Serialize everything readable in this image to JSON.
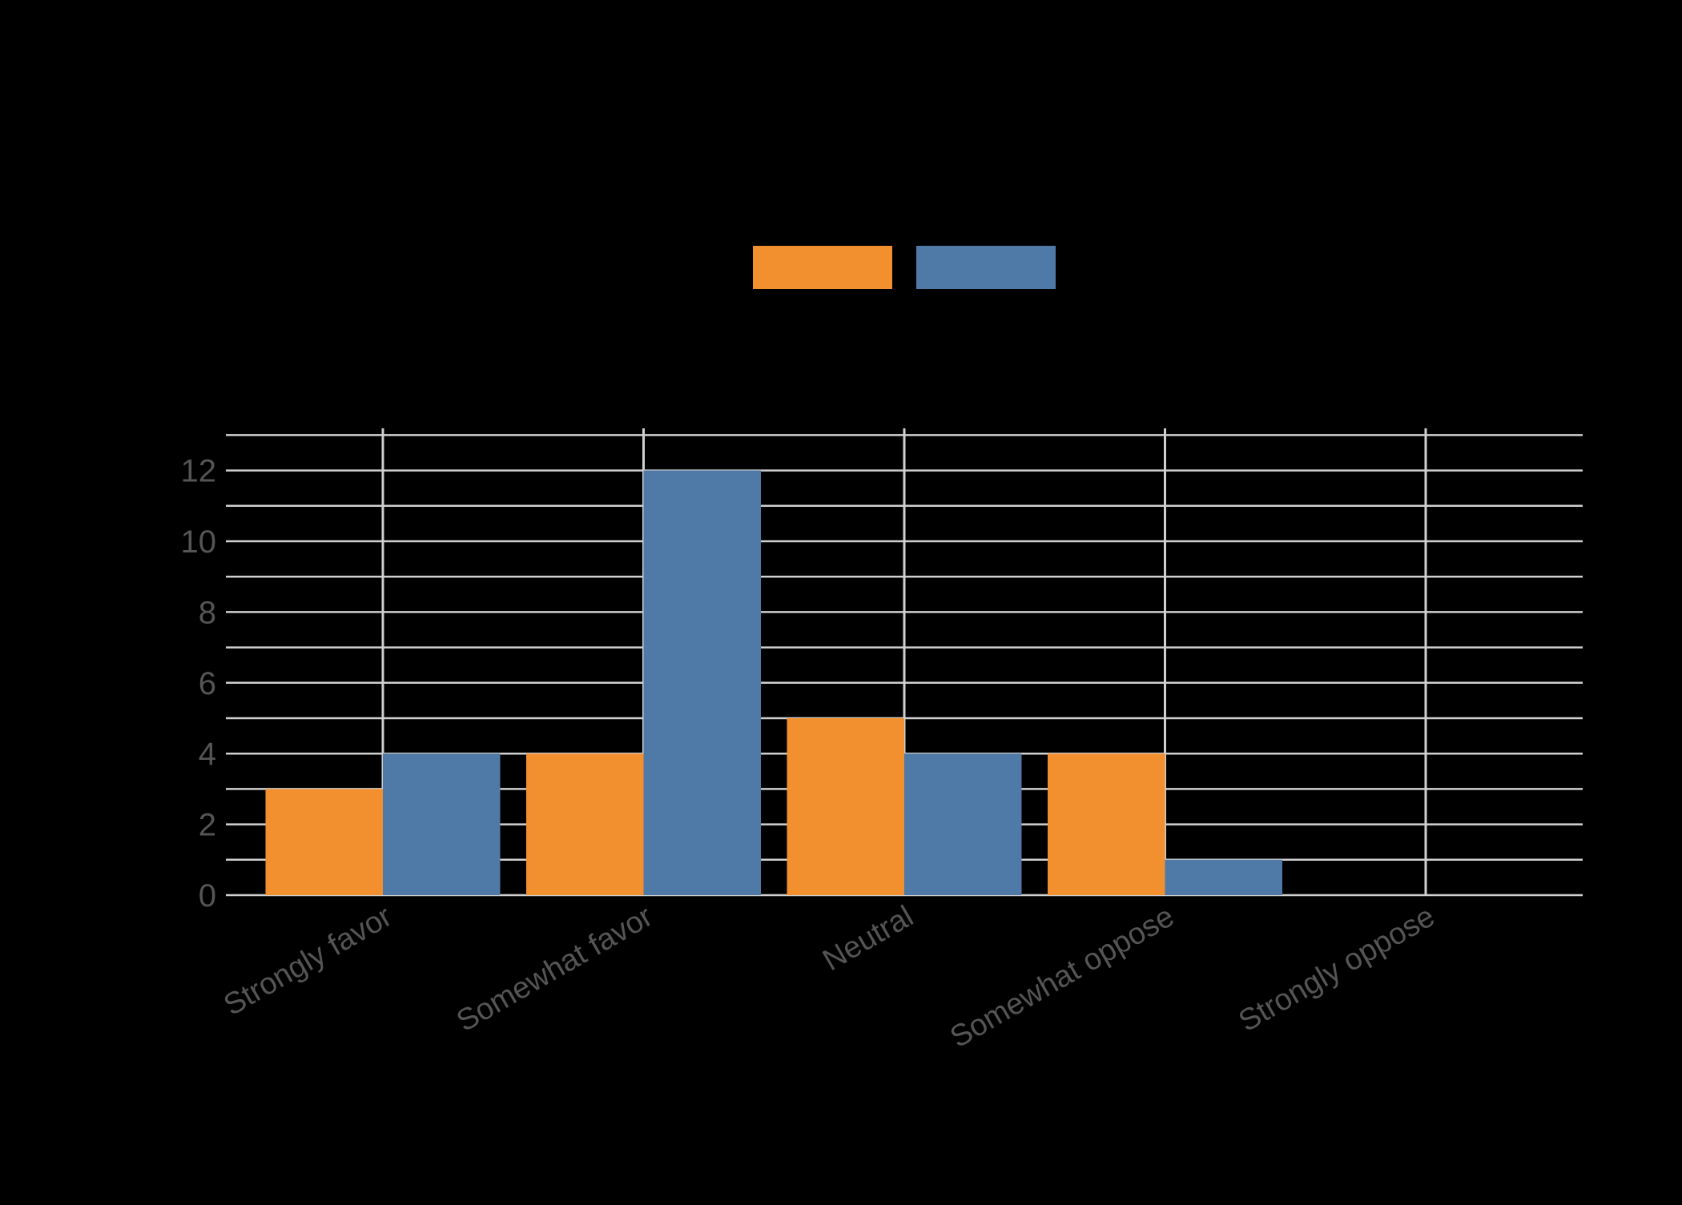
{
  "colors": {
    "background": "#000000",
    "grid": "#d0d0d0",
    "tick_text": "#555555",
    "series_1": "#f28f2e",
    "series_2": "#4f79a6"
  },
  "legend": {
    "items": [
      {
        "label": "",
        "color": "#f28f2e"
      },
      {
        "label": "",
        "color": "#4f79a6"
      }
    ]
  },
  "chart_data": {
    "type": "bar",
    "title": "",
    "xlabel": "",
    "ylabel": "",
    "categories": [
      "Strongly favor",
      "Somewhat favor",
      "Neutral",
      "Somewhat oppose",
      "Strongly oppose"
    ],
    "series": [
      {
        "name": "",
        "color": "#f28f2e",
        "values": [
          3,
          4,
          5,
          4,
          0
        ]
      },
      {
        "name": "",
        "color": "#4f79a6",
        "values": [
          4,
          12,
          4,
          1,
          0
        ]
      }
    ],
    "ylim": [
      0,
      13
    ],
    "yticks": [
      0,
      2,
      4,
      6,
      8,
      10,
      12
    ],
    "ytick_labels": [
      "0",
      "2",
      "4",
      "6",
      "8",
      "10",
      "12"
    ],
    "minor_grid_step": 1,
    "grid": true,
    "legend_position": "top-center",
    "xtick_rotation": -30
  }
}
